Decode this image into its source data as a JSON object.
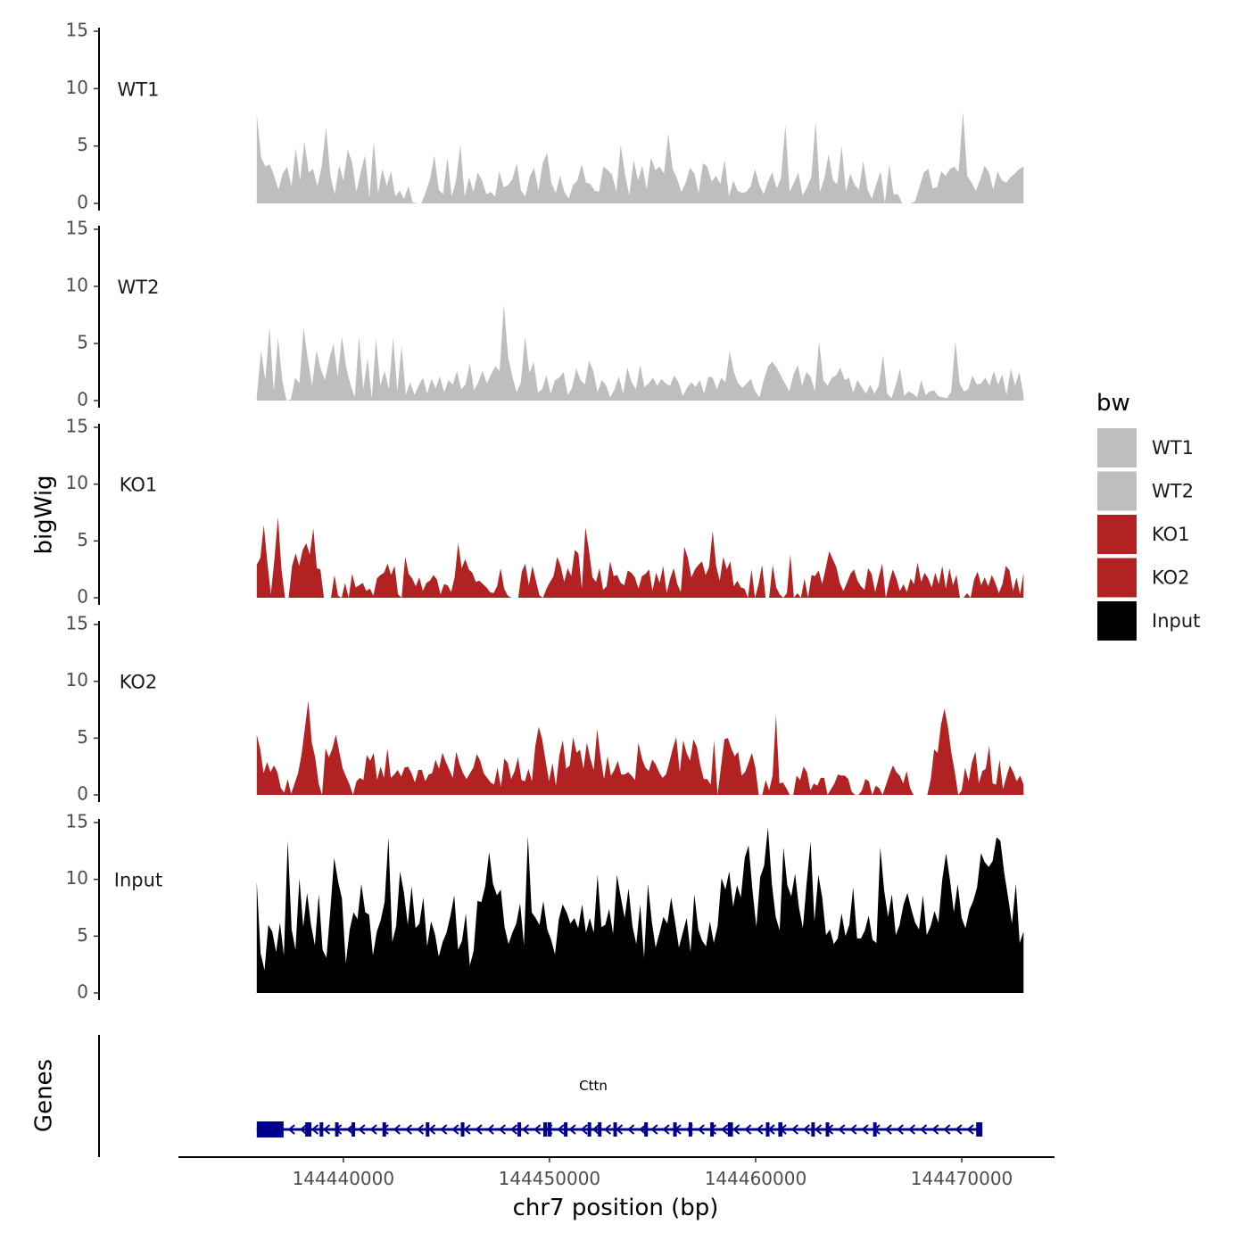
{
  "chart_data": {
    "type": "area",
    "chromosome": "chr7",
    "y_axis_label": "bigWig",
    "genes_panel_label": "Genes",
    "xlabel": "chr7 position (bp)",
    "xlim": [
      144432000,
      144474500
    ],
    "data_xrange": [
      144435800,
      144473000
    ],
    "x_ticks": [
      144440000,
      144450000,
      144460000,
      144470000
    ],
    "x_tick_labels": [
      "144440000",
      "144450000",
      "144460000",
      "144470000"
    ],
    "ylim": [
      0,
      15
    ],
    "y_ticks": [
      0,
      5,
      10,
      15
    ],
    "y_tick_labels": [
      "0",
      "5",
      "10",
      "15"
    ],
    "legend": {
      "title": "bw",
      "entries": [
        {
          "label": "WT1",
          "color": "#bebebe"
        },
        {
          "label": "WT2",
          "color": "#bebebe"
        },
        {
          "label": "KO1",
          "color": "#b22222"
        },
        {
          "label": "KO2",
          "color": "#b22222"
        },
        {
          "label": "Input",
          "color": "#000000"
        }
      ]
    },
    "series": [
      {
        "name": "WT1",
        "color": "#bebebe",
        "values": [
          7.8,
          4.0,
          3.2,
          3.4,
          2.4,
          1.2,
          2.6,
          3.2,
          1.5,
          4.8,
          2.0,
          5.4,
          2.7,
          3.0,
          1.5,
          3.2,
          6.6,
          2.4,
          0.8,
          3.3,
          2.0,
          4.7,
          3.6,
          1.0,
          2.7,
          4.2,
          0.5,
          5.4,
          0.9,
          3.0,
          1.5,
          2.8,
          0.6,
          1.1,
          0.4,
          1.5,
          0.1,
          0,
          0,
          1.0,
          2.1,
          4.2,
          1.2,
          0.8,
          4.0,
          0.6,
          2.0,
          5.1,
          0.6,
          2.3,
          1.0,
          2.7,
          2.0,
          0.8,
          1.0,
          0.6,
          2.8,
          1.4,
          1.6,
          2.1,
          3.5,
          1.1,
          0.6,
          2.3,
          3.1,
          1.1,
          3.5,
          4.4,
          1.8,
          0.9,
          2.4,
          1.0,
          0.4,
          1.6,
          2.0,
          3.4,
          1.8,
          1.7,
          1.1,
          1.0,
          3.2,
          2.9,
          2.5,
          1.0,
          5.1,
          2.5,
          0.7,
          3.8,
          2.0,
          3.3,
          1.2,
          4.0,
          2.9,
          3.2,
          2.6,
          6.1,
          3.0,
          2.2,
          1.0,
          1.8,
          3.1,
          2.6,
          0.9,
          3.5,
          3.2,
          1.9,
          2.4,
          1.7,
          3.8,
          0.6,
          2.0,
          1.1,
          0.9,
          1.0,
          1.5,
          3.0,
          1.6,
          0.8,
          1.9,
          2.7,
          1.3,
          2.2,
          6.8,
          1.0,
          1.8,
          2.7,
          0.7,
          1.4,
          2.3,
          7.1,
          1.0,
          2.2,
          4.3,
          2.0,
          1.7,
          5.0,
          1.0,
          2.6,
          1.6,
          1.2,
          3.7,
          1.2,
          0.4,
          1.7,
          2.8,
          0,
          3.4,
          0.8,
          0.8,
          0,
          0,
          0,
          0.2,
          1.5,
          2.7,
          3.0,
          1.3,
          1.4,
          2.8,
          2.4,
          3.0,
          3.2,
          2.7,
          8.0,
          2.4,
          1.8,
          1.1,
          2.1,
          3.3,
          2.7,
          1.2,
          2.8,
          2.0,
          1.8,
          2.3,
          2.6,
          3.0,
          3.2
        ]
      },
      {
        "name": "WT2",
        "color": "#bebebe",
        "values": [
          0.3,
          4.4,
          1.8,
          6.5,
          0.8,
          5.5,
          1.7,
          0,
          0.1,
          2.0,
          1.5,
          6.4,
          3.6,
          1.3,
          4.4,
          2.8,
          1.8,
          3.6,
          5.0,
          2.1,
          5.6,
          2.9,
          1.4,
          0.3,
          5.6,
          1.0,
          3.7,
          0.2,
          5.4,
          1.3,
          2.6,
          1.0,
          5.5,
          0.8,
          4.8,
          0.5,
          1.6,
          0.5,
          1.3,
          2.0,
          0.6,
          1.9,
          1.1,
          2.1,
          0.7,
          1.8,
          1.4,
          2.6,
          1.0,
          1.4,
          3.3,
          0.9,
          1.6,
          2.6,
          1.5,
          2.3,
          3.0,
          2.6,
          8.4,
          3.9,
          2.1,
          0.7,
          1.6,
          5.6,
          2.4,
          3.4,
          0.7,
          1.0,
          2.2,
          0.6,
          1.8,
          2.0,
          2.5,
          0.5,
          1.1,
          2.8,
          1.8,
          1.4,
          3.5,
          2.6,
          0.7,
          1.8,
          1.3,
          0.3,
          1.0,
          2.1,
          0.6,
          2.9,
          1.6,
          1.0,
          3.1,
          1.2,
          1.5,
          2.0,
          1.3,
          1.9,
          1.5,
          1.3,
          2.2,
          1.6,
          0.4,
          1.1,
          1.6,
          1.2,
          1.8,
          0.6,
          2.1,
          2.0,
          1.0,
          2.0,
          1.6,
          4.3,
          2.5,
          1.5,
          1.1,
          1.5,
          1.9,
          0.8,
          0.3,
          1.8,
          3.0,
          3.4,
          2.9,
          2.2,
          1.5,
          0.8,
          2.3,
          3.1,
          1.3,
          2.5,
          2.1,
          0.8,
          5.2,
          1.8,
          1.3,
          2.0,
          2.2,
          2.9,
          1.8,
          2.0,
          0.7,
          1.8,
          1.2,
          0.6,
          1.4,
          0.6,
          1.3,
          4.0,
          0.6,
          0.2,
          1.4,
          2.8,
          0.4,
          0.8,
          0.6,
          0.3,
          1.8,
          0.5,
          0.8,
          0.9,
          0.4,
          0.3,
          0.2,
          0.8,
          5.2,
          1.5,
          0.8,
          1.0,
          2.2,
          1.4,
          1.5,
          2.0,
          1.3,
          2.6,
          1.4,
          2.3,
          0.5,
          2.8,
          1.3,
          2.5,
          0.4
        ]
      },
      {
        "name": "KO1",
        "color": "#b22222",
        "values": [
          2.9,
          3.5,
          6.4,
          3.1,
          0.3,
          3.4,
          7.1,
          2.5,
          0,
          0,
          2.8,
          3.9,
          2.8,
          4.2,
          4.8,
          3.8,
          6.1,
          2.6,
          2.5,
          0,
          0,
          0,
          2.0,
          0.2,
          0,
          1.3,
          0,
          2.1,
          0.9,
          1.1,
          1.3,
          0.6,
          0.8,
          0.2,
          1.7,
          2.0,
          2.2,
          3.0,
          2.0,
          2.8,
          0.3,
          0,
          3.6,
          2.1,
          1.7,
          1.0,
          1.8,
          0.6,
          1.3,
          1.5,
          2.0,
          1.6,
          0.3,
          1.2,
          1.1,
          0.5,
          1.8,
          4.8,
          2.6,
          3.4,
          2.5,
          2.2,
          1.4,
          1.5,
          1.2,
          0.9,
          0.5,
          0.4,
          1.0,
          2.6,
          0.8,
          0.2,
          0,
          0,
          0,
          2.3,
          3.0,
          1.1,
          2.8,
          1.5,
          0.2,
          0,
          0.8,
          1.4,
          1.9,
          3.6,
          2.8,
          1.4,
          2.6,
          1.9,
          4.2,
          3.9,
          0.8,
          6.2,
          4.2,
          1.8,
          1.4,
          2.6,
          0.7,
          1.0,
          3.2,
          1.9,
          2.0,
          1.3,
          1.1,
          2.4,
          2.2,
          1.8,
          0.8,
          1.9,
          2.1,
          2.5,
          0.6,
          2.2,
          1.3,
          2.8,
          0.4,
          1.7,
          2.6,
          1.2,
          0.5,
          4.5,
          3.5,
          1.8,
          2.5,
          2.9,
          3.2,
          2.0,
          2.7,
          5.9,
          2.8,
          1.5,
          3.6,
          2.5,
          3.2,
          1.0,
          1.5,
          0.9,
          0.8,
          0,
          2.5,
          0,
          1.2,
          2.9,
          0,
          0,
          2.9,
          0.9,
          0.3,
          0,
          0.4,
          3.8,
          0,
          0.4,
          0,
          1.7,
          0,
          2.0,
          1.9,
          2.4,
          1.2,
          2.6,
          4.1,
          3.4,
          2.7,
          1.3,
          0.6,
          1.3,
          2.1,
          2.5,
          1.5,
          1.0,
          0.7,
          2.6,
          2.1,
          0.5,
          1.8,
          3.0,
          0,
          1.4,
          2.5,
          1.7,
          0.6,
          1.2,
          0.5,
          1.7,
          1.2,
          3.1,
          1.4,
          2.2,
          1.7,
          0.9,
          2.2,
          1.2,
          2.8,
          0.8,
          2.6,
          1.1,
          2.0,
          0,
          0,
          0.4,
          0,
          1.6,
          2.3,
          1.1,
          1.8,
          1.0,
          2.0,
          1.3,
          0.4,
          1.2,
          2.8,
          2.4,
          0.6,
          1.8,
          0.3,
          2.2
        ]
      },
      {
        "name": "KO2",
        "color": "#b22222",
        "values": [
          5.3,
          4.0,
          1.9,
          2.9,
          2.0,
          2.6,
          2.0,
          0.6,
          0.2,
          1.4,
          0.1,
          1.0,
          1.9,
          3.5,
          5.9,
          8.3,
          4.6,
          3.3,
          1.0,
          0,
          4.1,
          3.3,
          4.1,
          5.3,
          3.8,
          2.3,
          1.6,
          0.9,
          0,
          1.2,
          1.5,
          1.3,
          3.5,
          3.0,
          3.7,
          1.3,
          2.5,
          1.5,
          4.1,
          1.5,
          1.8,
          2.2,
          1.6,
          2.4,
          2.5,
          1.9,
          1.1,
          2.2,
          2.2,
          1.2,
          1.8,
          1.9,
          3.1,
          2.3,
          3.7,
          2.9,
          2.2,
          1.5,
          3.8,
          2.7,
          1.9,
          1.4,
          1.9,
          2.4,
          3.6,
          3.0,
          1.9,
          1.5,
          1.1,
          0.9,
          2.4,
          0.7,
          3.2,
          2.8,
          1.4,
          2.1,
          3.3,
          1.3,
          1.2,
          2.3,
          1.2,
          4.3,
          6.0,
          4.9,
          3.0,
          1.2,
          2.8,
          0.8,
          3.5,
          4.8,
          2.3,
          2.6,
          5.1,
          3.7,
          4.0,
          2.3,
          4.6,
          3.2,
          2.2,
          5.8,
          3.3,
          1.4,
          3.4,
          1.7,
          2.2,
          3.0,
          1.8,
          1.8,
          2.0,
          1.7,
          1.3,
          4.6,
          3.2,
          2.4,
          2.1,
          3.1,
          2.7,
          2.0,
          1.5,
          1.8,
          2.9,
          4.1,
          5.1,
          2.0,
          4.8,
          3.7,
          3.0,
          4.9,
          4.2,
          2.6,
          1.4,
          1.4,
          0.9,
          4.8,
          0,
          2.5,
          4.9,
          5.0,
          4.1,
          3.4,
          3.8,
          1.7,
          2.0,
          2.8,
          3.7,
          2.4,
          0,
          0,
          1.3,
          0.4,
          1.7,
          7.0,
          1.0,
          1.1,
          0.6,
          0,
          0,
          1.7,
          1.3,
          2.5,
          2.0,
          0.4,
          1.0,
          0.8,
          1.5,
          1.5,
          0,
          0.5,
          1.0,
          1.8,
          1.7,
          1.7,
          1.4,
          0.3,
          0,
          0,
          0.4,
          1.4,
          1.2,
          0,
          0.8,
          0.6,
          0,
          0.9,
          1.8,
          2.6,
          2.0,
          1.7,
          1.0,
          2.1,
          0.6,
          0,
          0,
          0,
          0,
          0,
          1.4,
          4.0,
          3.7,
          6.2,
          7.6,
          6.0,
          3.7,
          2.0,
          0,
          0.4,
          2.4,
          1.2,
          2.9,
          3.8,
          1.0,
          2.1,
          2.3,
          4.3,
          1.0,
          0.9,
          3.1,
          0.5,
          1.6,
          2.6,
          2.0,
          1.2,
          1.7,
          0.9
        ]
      },
      {
        "name": "Input",
        "color": "#000000",
        "values": [
          9.8,
          3.5,
          2.0,
          6.0,
          5.4,
          3.6,
          6.2,
          3.3,
          13.4,
          5.6,
          3.8,
          10.1,
          5.8,
          8.8,
          6.0,
          4.2,
          8.7,
          3.8,
          3.1,
          7.3,
          11.9,
          9.8,
          8.3,
          2.6,
          5.6,
          7.1,
          6.5,
          9.6,
          7.1,
          6.9,
          3.3,
          5.4,
          6.4,
          8.0,
          13.7,
          4.5,
          5.9,
          10.7,
          8.8,
          6.0,
          9.4,
          5.7,
          6.1,
          8.4,
          4.1,
          6.3,
          5.2,
          3.2,
          4.5,
          5.3,
          6.8,
          8.6,
          3.8,
          4.6,
          7.0,
          2.4,
          3.7,
          8.1,
          8.0,
          9.4,
          12.4,
          9.6,
          8.6,
          9.1,
          5.8,
          4.3,
          5.3,
          6.1,
          7.9,
          4.2,
          13.8,
          7.1,
          6.6,
          6.0,
          8.1,
          5.6,
          4.7,
          3.4,
          6.5,
          7.8,
          7.1,
          6.1,
          6.6,
          5.7,
          7.8,
          5.3,
          6.6,
          5.3,
          10.4,
          5.8,
          6.0,
          7.4,
          5.2,
          10.4,
          8.4,
          6.6,
          9.2,
          5.9,
          4.3,
          7.8,
          3.1,
          9.6,
          6.3,
          4.0,
          5.3,
          6.7,
          6.1,
          8.4,
          6.3,
          4.0,
          5.3,
          6.6,
          3.6,
          8.7,
          5.6,
          4.6,
          4.1,
          6.3,
          4.4,
          5.9,
          10.1,
          9.1,
          10.7,
          7.6,
          9.5,
          8.4,
          11.9,
          13.0,
          9.0,
          5.8,
          10.2,
          11.2,
          14.6,
          9.6,
          6.7,
          5.5,
          12.8,
          9.5,
          8.5,
          10.5,
          7.5,
          5.7,
          9.7,
          13.3,
          6.3,
          10.4,
          8.4,
          5.1,
          5.6,
          4.3,
          4.8,
          7.0,
          5.0,
          6.0,
          9.3,
          4.8,
          4.8,
          5.5,
          6.8,
          4.7,
          4.4,
          12.8,
          9.0,
          6.7,
          8.7,
          5.1,
          6.0,
          7.8,
          8.8,
          7.4,
          6.2,
          5.6,
          8.6,
          5.1,
          5.9,
          7.2,
          6.2,
          10.0,
          12.3,
          9.9,
          7.1,
          9.6,
          6.6,
          5.7,
          7.3,
          8.1,
          9.3,
          12.3,
          11.5,
          11.1,
          11.6,
          13.7,
          13.4,
          10.6,
          8.4,
          6.1,
          9.6,
          4.4,
          5.4
        ]
      }
    ],
    "gene_track": {
      "gene_name": "Cttn",
      "color": "#00008b",
      "strand": "-",
      "transcript_start": 144435800,
      "transcript_end": 144471000,
      "exons": [
        [
          144435800,
          144437100
        ],
        [
          144438150,
          144438450
        ],
        [
          144438850,
          144439000
        ],
        [
          144439600,
          144439750
        ],
        [
          144440400,
          144440550
        ],
        [
          144441900,
          144442050
        ],
        [
          144444000,
          144444100
        ],
        [
          144445700,
          144445800
        ],
        [
          144448450,
          144448600
        ],
        [
          144449700,
          144449800
        ],
        [
          144449900,
          144450100
        ],
        [
          144450700,
          144450850
        ],
        [
          144451850,
          144452000
        ],
        [
          144452350,
          144452500
        ],
        [
          144453100,
          144453250
        ],
        [
          144454600,
          144454750
        ],
        [
          144456000,
          144456100
        ],
        [
          144456750,
          144456900
        ],
        [
          144457800,
          144457900
        ],
        [
          144458650,
          144458900
        ],
        [
          144460500,
          144460650
        ],
        [
          144461100,
          144461300
        ],
        [
          144462700,
          144462800
        ],
        [
          144463400,
          144463500
        ],
        [
          144465700,
          144465800
        ],
        [
          144470700,
          144471000
        ]
      ]
    }
  }
}
